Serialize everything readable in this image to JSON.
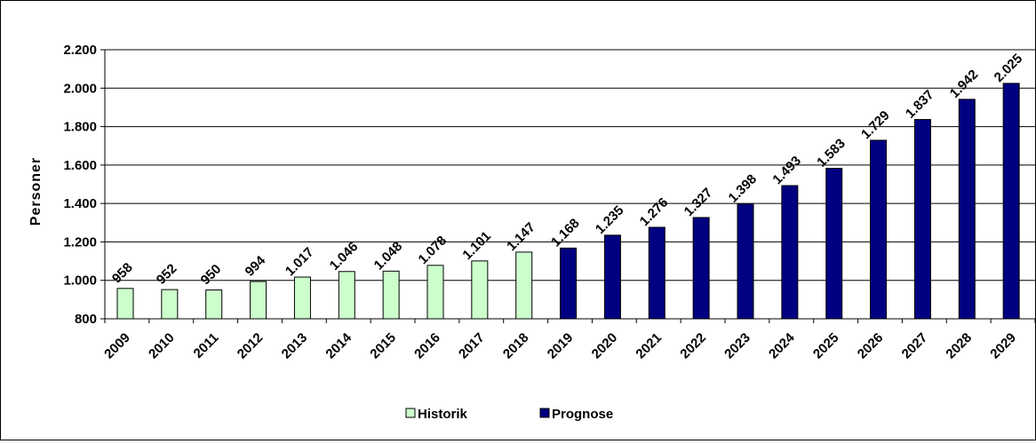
{
  "chart_data": {
    "type": "bar",
    "ylabel": "Personer",
    "xlabel": "",
    "ylim": [
      800,
      2200
    ],
    "yticks": [
      800,
      1000,
      1200,
      1400,
      1600,
      1800,
      2000,
      2200
    ],
    "ytick_labels": [
      "800",
      "1.000",
      "1.200",
      "1.400",
      "1.600",
      "1.800",
      "2.000",
      "2.200"
    ],
    "grid": true,
    "legend_position": "bottom",
    "categories": [
      "2009",
      "2010",
      "2011",
      "2012",
      "2013",
      "2014",
      "2015",
      "2016",
      "2017",
      "2018",
      "2019",
      "2020",
      "2021",
      "2022",
      "2023",
      "2024",
      "2025",
      "2026",
      "2027",
      "2028",
      "2029"
    ],
    "series": [
      {
        "name": "Historik",
        "color": "#ccffcc",
        "values": [
          958,
          952,
          950,
          994,
          1017,
          1046,
          1048,
          1078,
          1101,
          1147,
          null,
          null,
          null,
          null,
          null,
          null,
          null,
          null,
          null,
          null,
          null
        ],
        "labels": [
          "958",
          "952",
          "950",
          "994",
          "1.017",
          "1.046",
          "1.048",
          "1.078",
          "1.101",
          "1.147",
          "",
          "",
          "",
          "",
          "",
          "",
          "",
          "",
          "",
          "",
          ""
        ]
      },
      {
        "name": "Prognose",
        "color": "#000080",
        "values": [
          null,
          null,
          null,
          null,
          null,
          null,
          null,
          null,
          null,
          null,
          1168,
          1235,
          1276,
          1327,
          1398,
          1493,
          1583,
          1729,
          1837,
          1942,
          2025
        ],
        "labels": [
          "",
          "",
          "",
          "",
          "",
          "",
          "",
          "",
          "",
          "",
          "1.168",
          "1.235",
          "1.276",
          "1.327",
          "1.398",
          "1.493",
          "1.583",
          "1.729",
          "1.837",
          "1.942",
          "2.025"
        ]
      }
    ]
  }
}
